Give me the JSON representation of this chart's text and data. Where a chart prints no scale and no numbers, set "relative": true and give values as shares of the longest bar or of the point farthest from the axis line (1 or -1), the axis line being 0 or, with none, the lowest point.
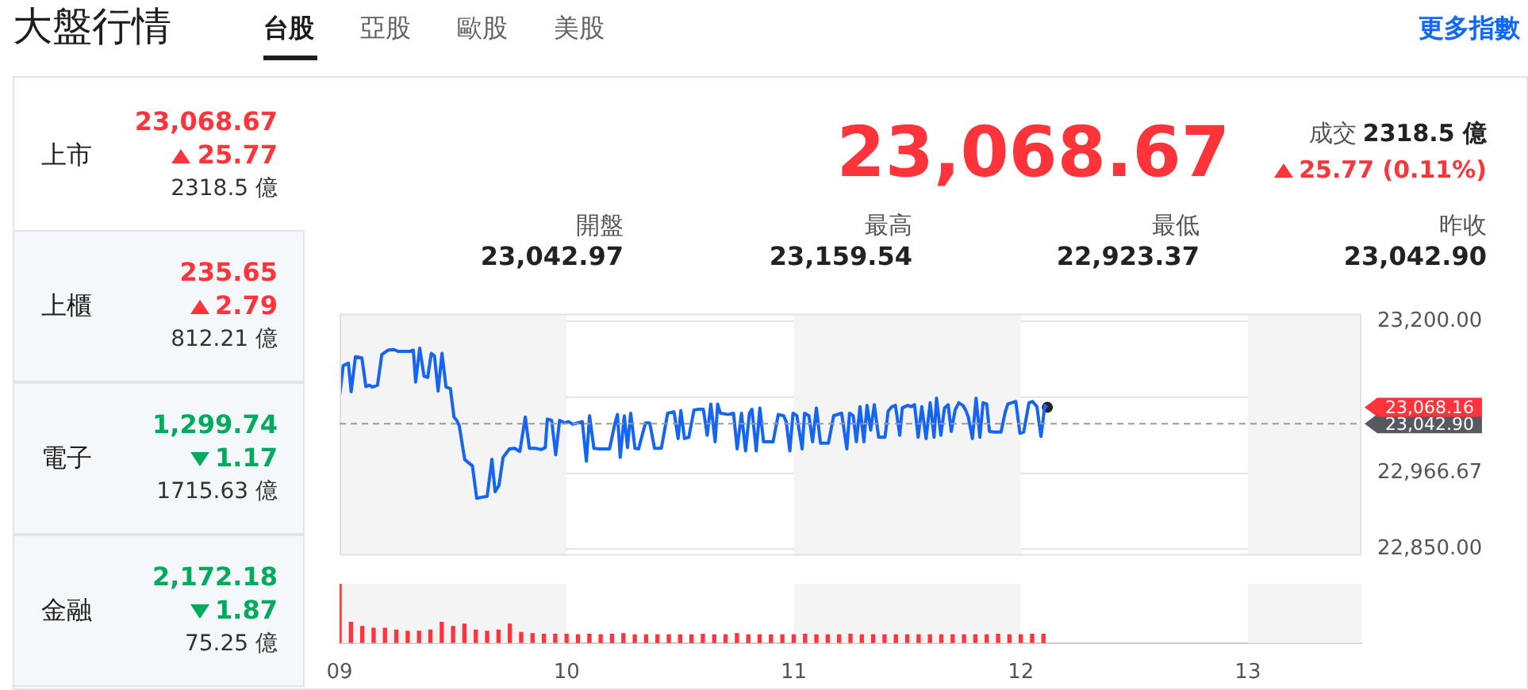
{
  "chart_data": [
    {
      "type": "other",
      "title": "大盤行情",
      "annotations": [
        "台股",
        "亞股",
        "歐股",
        "美股",
        "更多指數",
        "上市",
        "23,068.67",
        "25.77",
        "2318.5 億",
        "上櫃",
        "235.65",
        "2.79",
        "812.21 億",
        "電子",
        "1,299.74",
        "1.17",
        "1715.63 億",
        "金融",
        "2,172.18",
        "1.87",
        "75.25 億",
        "23,068.67",
        "成交",
        "2318.5 億",
        "25.77 (0.11%)",
        "開盤",
        "23,042.97",
        "最高",
        "23,159.54",
        "最低",
        "22,923.37",
        "昨收",
        "23,042.90"
      ]
    },
    {
      "type": "line",
      "series": [
        {
          "type": "line",
          "color": "#1464f6",
          "x": [
            9.0,
            9.016,
            9.039,
            9.051,
            9.07,
            9.098,
            9.116,
            9.132,
            9.144,
            9.167,
            9.186,
            9.214,
            9.237,
            9.26,
            9.307,
            9.325,
            9.335,
            9.353,
            9.372,
            9.388,
            9.404,
            9.418,
            9.434,
            9.451,
            9.469,
            9.488,
            9.504,
            9.516,
            9.527,
            9.551,
            9.574,
            9.585,
            9.604,
            9.632,
            9.65,
            9.671,
            9.685,
            9.702,
            9.72,
            9.748,
            9.771,
            9.794,
            9.818,
            9.836,
            9.864,
            9.887,
            9.906,
            9.915,
            9.934,
            9.952,
            9.969,
            9.992,
            10.008,
            10.027,
            10.05,
            10.069,
            10.087,
            10.101,
            10.12,
            10.143,
            10.189,
            10.213,
            10.224,
            10.236,
            10.254,
            10.268,
            10.282,
            10.301,
            10.317,
            10.347,
            10.366,
            10.387,
            10.417,
            10.445,
            10.473,
            10.491,
            10.503,
            10.519,
            10.538,
            10.561,
            10.584,
            10.602,
            10.619,
            10.635,
            10.654,
            10.665,
            10.677,
            10.712,
            10.735,
            10.751,
            10.77,
            10.788,
            10.805,
            10.816,
            10.835,
            10.851,
            10.867,
            10.909,
            10.932,
            10.956,
            10.967,
            10.983,
            10.997,
            11.014,
            11.037,
            11.048,
            11.067,
            11.083,
            11.1,
            11.118,
            11.153,
            11.176,
            11.211,
            11.234,
            11.246,
            11.262,
            11.276,
            11.292,
            11.309,
            11.323,
            11.339,
            11.355,
            11.374,
            11.402,
            11.416,
            11.432,
            11.448,
            11.467,
            11.478,
            11.502,
            11.518,
            11.532,
            11.548,
            11.564,
            11.583,
            11.601,
            11.618,
            11.629,
            11.648,
            11.664,
            11.68,
            11.694,
            11.711,
            11.727,
            11.745,
            11.757,
            11.769,
            11.787,
            11.803,
            11.82,
            11.834,
            11.85,
            11.862,
            11.885,
            11.913,
            11.931,
            11.943,
            11.959,
            11.978,
            11.996,
            12.013,
            12.036,
            12.052,
            12.071,
            12.089,
            12.106,
            12.117
          ],
          "values": [
            23085,
            23132,
            23136,
            23092,
            23146,
            23144,
            23100,
            23102,
            23099,
            23102,
            23149,
            23156,
            23157,
            23154,
            23154,
            23156,
            23107,
            23159,
            23116,
            23114,
            23151,
            23147,
            23093,
            23151,
            23099,
            23097,
            23053,
            23048,
            23040,
            22988,
            22981,
            22978,
            22928,
            22930,
            22931,
            22988,
            22938,
            22948,
            22991,
            23004,
            23005,
            23000,
            23053,
            23005,
            23005,
            23003,
            23006,
            23050,
            23048,
            22995,
            23048,
            23044,
            23046,
            23042,
            23044,
            23046,
            22985,
            23055,
            23005,
            23004,
            23004,
            23044,
            23057,
            22991,
            23055,
            23006,
            23059,
            23005,
            23004,
            23044,
            23044,
            23005,
            23005,
            23059,
            23061,
            23020,
            23063,
            23020,
            23022,
            23064,
            23065,
            23065,
            23025,
            23073,
            23015,
            23073,
            23059,
            23057,
            23059,
            23004,
            23059,
            23001,
            23059,
            23065,
            23001,
            23067,
            23015,
            23015,
            23057,
            23055,
            23046,
            23001,
            23059,
            23055,
            23004,
            23059,
            23055,
            23015,
            23067,
            23013,
            23013,
            23055,
            23059,
            23004,
            23059,
            23055,
            23015,
            23069,
            23015,
            23071,
            23033,
            23072,
            23022,
            23022,
            23062,
            23069,
            23071,
            23025,
            23067,
            23071,
            23069,
            23072,
            23022,
            23069,
            23020,
            23075,
            23022,
            23082,
            23025,
            23067,
            23072,
            23031,
            23064,
            23075,
            23071,
            23064,
            23053,
            23020,
            23082,
            23022,
            23075,
            23073,
            23031,
            23030,
            23030,
            23060,
            23073,
            23075,
            23077,
            23028,
            23030,
            23075,
            23077,
            23069,
            23023,
            23071,
            23068
          ]
        },
        {
          "type": "scatter",
          "color": "#222222",
          "marker": "circle",
          "x": [
            12.117
          ],
          "values": [
            23068
          ]
        }
      ],
      "xlim": [
        9,
        13.5
      ],
      "ylim": [
        22840,
        23212
      ],
      "yticks": [
        {
          "value": 22850,
          "label": "22,850.00"
        },
        {
          "value": 22966.67,
          "label": "22,966.67"
        },
        {
          "value": 23083.33,
          "label": null
        },
        {
          "value": 23200,
          "label": "23,200.00"
        }
      ],
      "tick_labels": "y",
      "grid": "y",
      "bands": [
        {
          "axis": "x",
          "from": 9,
          "to": 10,
          "color": "#f4f4f4"
        },
        {
          "axis": "x",
          "from": 11,
          "to": 12,
          "color": "#f4f4f4"
        },
        {
          "axis": "x",
          "from": 13,
          "to": 13.5,
          "color": "#f4f4f4"
        }
      ],
      "ref_lines": [
        {
          "axis": "y",
          "value": 23042.9,
          "label": "23,042.90",
          "color": "#9a9a9a",
          "line_style": "dashed"
        }
      ],
      "annotations": [
        "23,068.16"
      ]
    },
    {
      "type": "bar",
      "relative": true,
      "color": "#ff333a",
      "x": [
        9.0,
        9.05,
        9.1,
        9.15,
        9.2,
        9.25,
        9.3,
        9.35,
        9.4,
        9.45,
        9.5,
        9.55,
        9.6,
        9.65,
        9.7,
        9.75,
        9.8,
        9.85,
        9.9,
        9.95,
        10.0,
        10.05,
        10.1,
        10.15,
        10.2,
        10.25,
        10.3,
        10.35,
        10.4,
        10.45,
        10.5,
        10.55,
        10.6,
        10.65,
        10.7,
        10.75,
        10.8,
        10.85,
        10.9,
        10.95,
        11.0,
        11.05,
        11.1,
        11.15,
        11.2,
        11.25,
        11.3,
        11.35,
        11.4,
        11.45,
        11.5,
        11.55,
        11.6,
        11.65,
        11.7,
        11.75,
        11.8,
        11.85,
        11.9,
        11.95,
        12.0,
        12.05,
        12.1
      ],
      "values": [
        1.0,
        0.35,
        0.28,
        0.25,
        0.25,
        0.22,
        0.2,
        0.2,
        0.22,
        0.35,
        0.28,
        0.32,
        0.22,
        0.2,
        0.22,
        0.32,
        0.18,
        0.16,
        0.15,
        0.15,
        0.15,
        0.14,
        0.15,
        0.14,
        0.15,
        0.16,
        0.14,
        0.14,
        0.14,
        0.14,
        0.14,
        0.14,
        0.15,
        0.14,
        0.14,
        0.16,
        0.14,
        0.14,
        0.14,
        0.14,
        0.14,
        0.15,
        0.14,
        0.14,
        0.14,
        0.15,
        0.14,
        0.14,
        0.14,
        0.14,
        0.14,
        0.14,
        0.14,
        0.14,
        0.14,
        0.14,
        0.14,
        0.14,
        0.15,
        0.14,
        0.14,
        0.15,
        0.15
      ],
      "xlim": [
        9,
        13.5
      ],
      "xticks": [
        {
          "value": 9,
          "label": "09"
        },
        {
          "value": 10,
          "label": "10"
        },
        {
          "value": 11,
          "label": "11"
        },
        {
          "value": 12,
          "label": "12"
        },
        {
          "value": 13,
          "label": "13"
        }
      ],
      "tick_labels": "x",
      "bands": [
        {
          "axis": "x",
          "from": 9,
          "to": 10,
          "color": "#f4f4f4"
        },
        {
          "axis": "x",
          "from": 11,
          "to": 12,
          "color": "#f4f4f4"
        },
        {
          "axis": "x",
          "from": 13,
          "to": 13.5,
          "color": "#f4f4f4"
        }
      ]
    }
  ]
}
